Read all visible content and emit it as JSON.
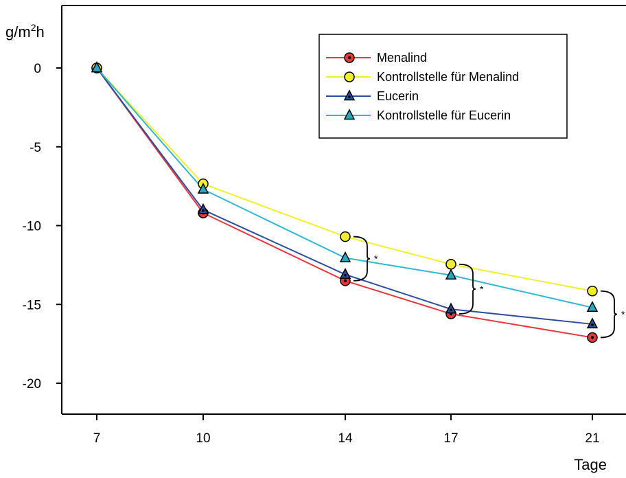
{
  "chart_data": {
    "type": "line",
    "title": "",
    "ylabel": "g/m²h",
    "ylabel_base": "g/m",
    "ylabel_sup": "2",
    "ylabel_tail": "h",
    "xlabel": "Tage",
    "x": [
      7,
      10,
      14,
      17,
      21
    ],
    "x_ticks": [
      "7",
      "10",
      "14",
      "17",
      "21"
    ],
    "y_ticks": [
      0,
      -5,
      -10,
      -15,
      -20
    ],
    "y_tick_labels": [
      "0",
      "-5",
      "-10",
      "-15",
      "-20"
    ],
    "ylim": [
      -22,
      4
    ],
    "grid": false,
    "legend_position": "top-right",
    "series": [
      {
        "name": "Menalind",
        "values": [
          0,
          -9.2,
          -13.5,
          -15.6,
          -17.1
        ],
        "color": "#e8383d",
        "marker": "circle-dot",
        "marker_fill": "#e8383d"
      },
      {
        "name": "Kontrollstelle für Menalind",
        "values": [
          0,
          -7.35,
          -10.7,
          -12.45,
          -14.15
        ],
        "color": "#f0f030",
        "marker": "circle",
        "marker_fill": "#f2ee2a"
      },
      {
        "name": "Eucerin",
        "values": [
          0,
          -9.0,
          -13.1,
          -15.3,
          -16.25
        ],
        "color": "#2a4e9e",
        "marker": "triangle",
        "marker_fill": "#2a4e9e"
      },
      {
        "name": "Kontrollstelle für Eucerin",
        "values": [
          0,
          -7.7,
          -12.05,
          -13.15,
          -15.2
        ],
        "color": "#2fb7d4",
        "marker": "triangle",
        "marker_fill": "#25a8c6"
      }
    ],
    "annotations": [
      {
        "text": "*",
        "x": 14,
        "y_top": -10.7,
        "y_bottom": -13.5
      },
      {
        "text": "*",
        "x": 17,
        "y_top": -12.45,
        "y_bottom": -15.6
      },
      {
        "text": "*",
        "x": 21,
        "y_top": -14.15,
        "y_bottom": -17.1
      }
    ]
  }
}
